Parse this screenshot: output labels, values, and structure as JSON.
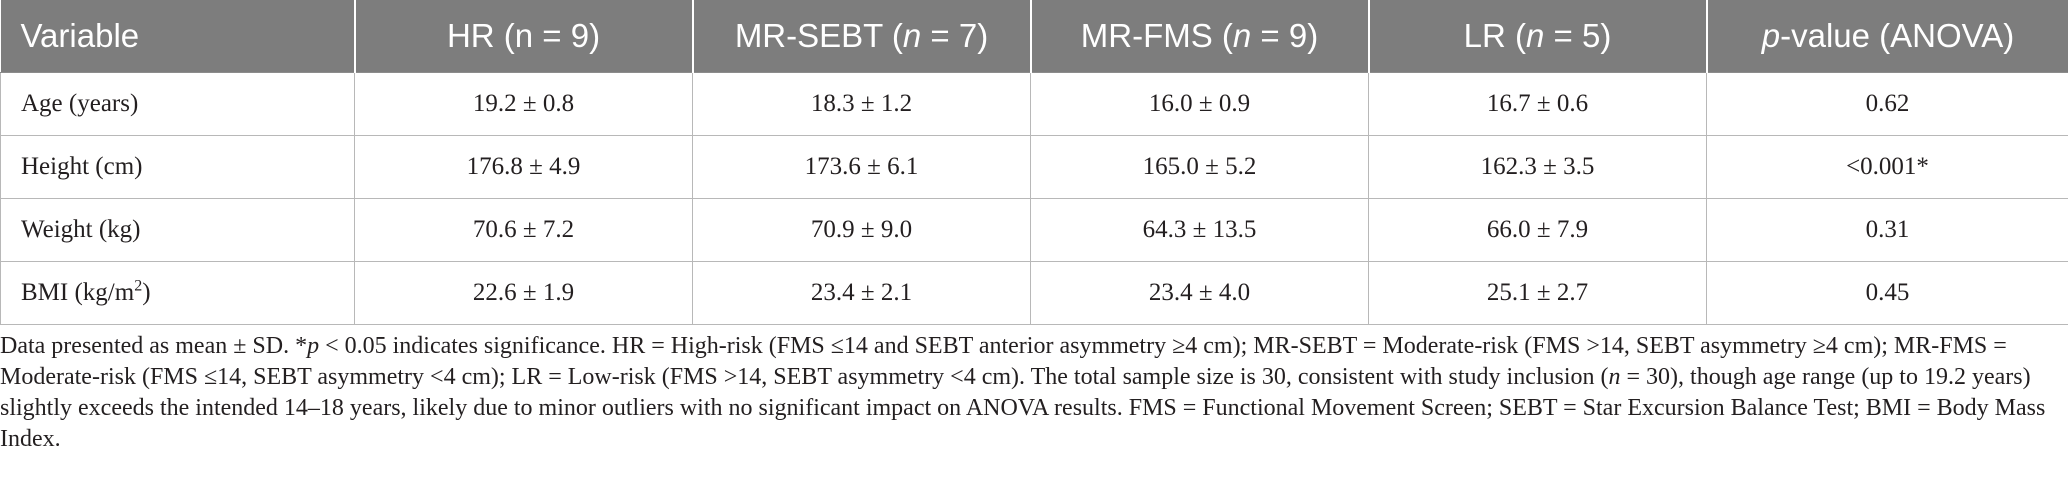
{
  "table": {
    "headers": [
      {
        "text": "Variable"
      },
      {
        "pre": "HR (n = 9)",
        "ital": "",
        "post": ""
      },
      {
        "pre": "MR-SEBT (",
        "ital": "n",
        "post": " = 7)"
      },
      {
        "pre": "MR-FMS (",
        "ital": "n",
        "post": " = 9)"
      },
      {
        "pre": "LR (",
        "ital": "n",
        "post": " = 5)"
      },
      {
        "pre": "",
        "ital": "p",
        "post": "-value (ANOVA)"
      }
    ],
    "rows": [
      {
        "variable": "Age (years)",
        "hr": "19.2 ± 0.8",
        "mr_sebt": "18.3 ± 1.2",
        "mr_fms": "16.0 ± 0.9",
        "lr": "16.7 ± 0.6",
        "p": "0.62"
      },
      {
        "variable": "Height (cm)",
        "hr": "176.8 ± 4.9",
        "mr_sebt": "173.6 ± 6.1",
        "mr_fms": "165.0 ± 5.2",
        "lr": "162.3 ± 3.5",
        "p": "<0.001*"
      },
      {
        "variable": "Weight (kg)",
        "hr": "70.6 ± 7.2",
        "mr_sebt": "70.9 ± 9.0",
        "mr_fms": "64.3 ± 13.5",
        "lr": "66.0 ± 7.9",
        "p": "0.31"
      },
      {
        "variable_pre": "BMI (kg/m",
        "variable_sup": "2",
        "variable_post": ")",
        "hr": "22.6 ± 1.9",
        "mr_sebt": "23.4 ± 2.1",
        "mr_fms": "23.4 ± 4.0",
        "lr": "25.1 ± 2.7",
        "p": "0.45"
      }
    ]
  },
  "note": {
    "part1": "Data presented as mean ± SD. *",
    "ital1": "p",
    "part2": " < 0.05 indicates significance. HR = High-risk (FMS ≤14 and SEBT anterior asymmetry ≥4 cm); MR-SEBT = Moderate-risk (FMS >14, SEBT asymmetry ≥4 cm); MR-FMS = Moderate-risk (FMS ≤14, SEBT asymmetry <4 cm); LR = Low-risk (FMS >14, SEBT asymmetry <4 cm). The total sample size is 30, consistent with study inclusion (",
    "ital2": "n",
    "part3": " = 30), though age range (up to 19.2 years) slightly exceeds the intended 14–18 years, likely due to minor outliers with no significant impact on ANOVA results. FMS = Functional Movement Screen; SEBT = Star Excursion Balance Test; BMI = Body Mass Index."
  },
  "colors": {
    "header_bg": "#7d7d7d",
    "header_text": "#ffffff",
    "grid_line": "#b8b8b8",
    "body_text": "#231f20"
  }
}
